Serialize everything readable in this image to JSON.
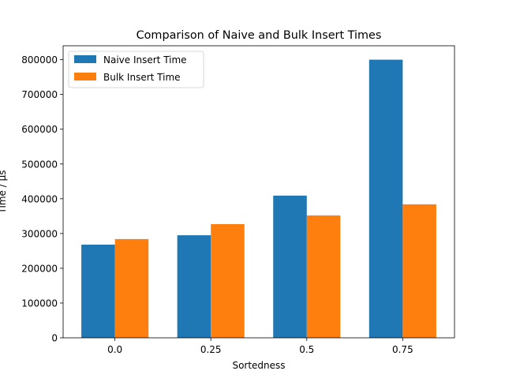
{
  "chart_data": {
    "type": "bar",
    "title": "Comparison of Naive and Bulk Insert Times",
    "xlabel": "Sortedness",
    "ylabel": "Time / µs",
    "categories": [
      "0.0",
      "0.25",
      "0.5",
      "0.75"
    ],
    "series": [
      {
        "name": "Naive Insert Time",
        "color": "#1f77b4",
        "values": [
          268000,
          295000,
          409000,
          800000
        ]
      },
      {
        "name": "Bulk Insert Time",
        "color": "#ff7f0e",
        "values": [
          284000,
          327000,
          352000,
          384000
        ]
      }
    ],
    "ylim": [
      0,
      840000
    ],
    "yticks": [
      0,
      100000,
      200000,
      300000,
      400000,
      500000,
      600000,
      700000,
      800000
    ],
    "grid": false,
    "legend": "upper left"
  }
}
